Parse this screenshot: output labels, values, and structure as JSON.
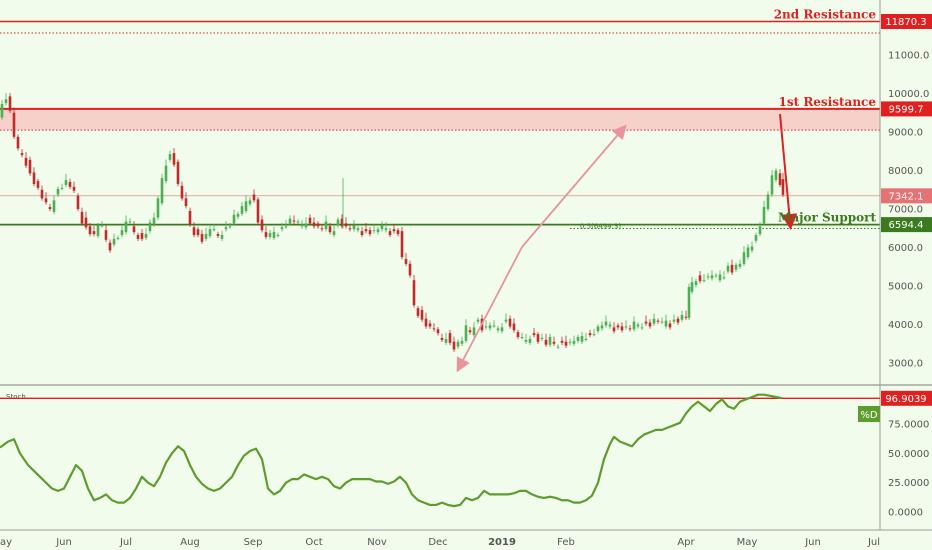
{
  "chart_data": {
    "type": "candlestick",
    "price_axis": {
      "ticks": [
        "11000.0",
        "10000.0",
        "9000.0",
        "8000.0",
        "7000.0",
        "6000.0",
        "5000.0",
        "4000.0",
        "3000.0"
      ],
      "tick_values": [
        11000,
        10000,
        9000,
        8000,
        7000,
        6000,
        5000,
        4000,
        3000
      ]
    },
    "stoch_axis": {
      "ticks": [
        "75.0000",
        "50.0000",
        "25.0000",
        "0.0000"
      ],
      "tick_values": [
        75,
        50,
        25,
        0
      ],
      "label": "Stoch",
      "legend": "%D"
    },
    "time_axis": {
      "labels": [
        "ay",
        "Jun",
        "Jul",
        "Aug",
        "Sep",
        "Oct",
        "Nov",
        "Dec",
        "2019",
        "Feb",
        "Apr",
        "May",
        "Jun",
        "Jul"
      ]
    },
    "levels": {
      "second_resistance": {
        "label": "2nd Resistance",
        "value": 11870.3,
        "value_text": "11870.3"
      },
      "first_resistance": {
        "label": "1st Resistance",
        "value": 9599.7,
        "value_text": "9599.7"
      },
      "current_price": {
        "value": 7342.1,
        "value_text": "7342.1"
      },
      "major_support": {
        "label": "Major Support",
        "value": 6594.4,
        "value_text": "6594.4"
      },
      "fib_label": "0.5(6494.3)",
      "stoch_level": {
        "value": 96.9039,
        "value_text": "96.9039"
      }
    },
    "colors": {
      "resistance": "#e02020",
      "support": "#3b7a1e",
      "zone_fill": "#f6c9c3",
      "candle_up": "#4caf50",
      "candle_down": "#c62828",
      "stoch_line": "#5e9c2e",
      "arrow_pink": "#e8949c",
      "arrow_red": "#e02020",
      "price_badge": "#e57373"
    },
    "candles_close_path": [
      [
        0,
        9300
      ],
      [
        4,
        9700
      ],
      [
        8,
        9900
      ],
      [
        12,
        9500
      ],
      [
        16,
        8900
      ],
      [
        20,
        8500
      ],
      [
        24,
        8400
      ],
      [
        28,
        8200
      ],
      [
        32,
        7900
      ],
      [
        36,
        7700
      ],
      [
        40,
        7500
      ],
      [
        44,
        7300
      ],
      [
        48,
        7100
      ],
      [
        52,
        7000
      ],
      [
        56,
        7300
      ],
      [
        60,
        7500
      ],
      [
        64,
        7600
      ],
      [
        68,
        7700
      ],
      [
        72,
        7600
      ],
      [
        76,
        7400
      ],
      [
        80,
        7000
      ],
      [
        84,
        6700
      ],
      [
        88,
        6500
      ],
      [
        92,
        6400
      ],
      [
        96,
        6300
      ],
      [
        100,
        6600
      ],
      [
        104,
        6500
      ],
      [
        108,
        6200
      ],
      [
        112,
        6000
      ],
      [
        116,
        6200
      ],
      [
        120,
        6300
      ],
      [
        124,
        6400
      ],
      [
        128,
        6700
      ],
      [
        132,
        6600
      ],
      [
        136,
        6400
      ],
      [
        140,
        6300
      ],
      [
        144,
        6200
      ],
      [
        148,
        6400
      ],
      [
        152,
        6600
      ],
      [
        156,
        6800
      ],
      [
        160,
        7200
      ],
      [
        164,
        7800
      ],
      [
        168,
        8200
      ],
      [
        172,
        8400
      ],
      [
        176,
        8200
      ],
      [
        180,
        7600
      ],
      [
        184,
        7300
      ],
      [
        188,
        7000
      ],
      [
        192,
        6600
      ],
      [
        196,
        6400
      ],
      [
        200,
        6300
      ],
      [
        204,
        6200
      ],
      [
        208,
        6300
      ],
      [
        212,
        6500
      ],
      [
        216,
        6400
      ],
      [
        220,
        6300
      ],
      [
        224,
        6400
      ],
      [
        228,
        6500
      ],
      [
        232,
        6600
      ],
      [
        236,
        6800
      ],
      [
        240,
        6900
      ],
      [
        244,
        7000
      ],
      [
        248,
        7200
      ],
      [
        252,
        7300
      ],
      [
        256,
        7200
      ],
      [
        260,
        6700
      ],
      [
        264,
        6400
      ],
      [
        268,
        6300
      ],
      [
        272,
        6300
      ],
      [
        276,
        6400
      ],
      [
        280,
        6400
      ],
      [
        284,
        6500
      ],
      [
        288,
        6600
      ],
      [
        292,
        6700
      ],
      [
        296,
        6700
      ],
      [
        300,
        6600
      ],
      [
        304,
        6600
      ],
      [
        308,
        6700
      ],
      [
        312,
        6600
      ],
      [
        316,
        6600
      ],
      [
        320,
        6500
      ],
      [
        324,
        6500
      ],
      [
        328,
        6600
      ],
      [
        332,
        6400
      ],
      [
        336,
        6500
      ],
      [
        340,
        6700
      ],
      [
        344,
        6600
      ],
      [
        348,
        6500
      ],
      [
        352,
        6500
      ],
      [
        356,
        6500
      ],
      [
        360,
        6500
      ],
      [
        364,
        6400
      ],
      [
        368,
        6400
      ],
      [
        372,
        6400
      ],
      [
        376,
        6400
      ],
      [
        380,
        6500
      ],
      [
        384,
        6500
      ],
      [
        388,
        6500
      ],
      [
        392,
        6400
      ],
      [
        396,
        6400
      ],
      [
        400,
        6400
      ],
      [
        404,
        5700
      ],
      [
        408,
        5600
      ],
      [
        412,
        5200
      ],
      [
        416,
        4500
      ],
      [
        420,
        4300
      ],
      [
        424,
        4100
      ],
      [
        428,
        4000
      ],
      [
        432,
        3900
      ],
      [
        436,
        3900
      ],
      [
        440,
        3700
      ],
      [
        444,
        3600
      ],
      [
        448,
        3700
      ],
      [
        452,
        3500
      ],
      [
        456,
        3400
      ],
      [
        460,
        3500
      ],
      [
        464,
        3600
      ],
      [
        468,
        3900
      ],
      [
        472,
        3800
      ],
      [
        476,
        4000
      ],
      [
        480,
        4100
      ],
      [
        484,
        3900
      ],
      [
        488,
        3900
      ],
      [
        492,
        4000
      ],
      [
        496,
        3900
      ],
      [
        500,
        3900
      ],
      [
        504,
        4000
      ],
      [
        508,
        4100
      ],
      [
        512,
        4000
      ],
      [
        516,
        3800
      ],
      [
        520,
        3700
      ],
      [
        524,
        3600
      ],
      [
        528,
        3600
      ],
      [
        532,
        3700
      ],
      [
        536,
        3700
      ],
      [
        540,
        3600
      ],
      [
        544,
        3600
      ],
      [
        548,
        3500
      ],
      [
        552,
        3600
      ],
      [
        556,
        3500
      ],
      [
        560,
        3500
      ],
      [
        564,
        3500
      ],
      [
        568,
        3500
      ],
      [
        572,
        3500
      ],
      [
        576,
        3600
      ],
      [
        580,
        3600
      ],
      [
        584,
        3700
      ],
      [
        588,
        3700
      ],
      [
        592,
        3700
      ],
      [
        596,
        3800
      ],
      [
        600,
        3900
      ],
      [
        604,
        4000
      ],
      [
        608,
        4000
      ],
      [
        612,
        4000
      ],
      [
        616,
        3900
      ],
      [
        620,
        3900
      ],
      [
        624,
        3900
      ],
      [
        628,
        3900
      ],
      [
        632,
        3900
      ],
      [
        636,
        4000
      ],
      [
        640,
        4000
      ],
      [
        644,
        4000
      ],
      [
        648,
        4000
      ],
      [
        652,
        4000
      ],
      [
        656,
        4100
      ],
      [
        660,
        4100
      ],
      [
        664,
        4000
      ],
      [
        668,
        4100
      ],
      [
        672,
        4000
      ],
      [
        676,
        4100
      ],
      [
        680,
        4100
      ],
      [
        684,
        4200
      ],
      [
        688,
        4200
      ],
      [
        690,
        4900
      ],
      [
        694,
        5100
      ],
      [
        698,
        5200
      ],
      [
        702,
        5100
      ],
      [
        706,
        5200
      ],
      [
        710,
        5200
      ],
      [
        714,
        5300
      ],
      [
        718,
        5200
      ],
      [
        722,
        5300
      ],
      [
        726,
        5300
      ],
      [
        730,
        5500
      ],
      [
        734,
        5400
      ],
      [
        738,
        5500
      ],
      [
        742,
        5600
      ],
      [
        746,
        5800
      ],
      [
        750,
        6000
      ],
      [
        754,
        6100
      ],
      [
        758,
        6300
      ],
      [
        762,
        6600
      ],
      [
        766,
        7000
      ],
      [
        770,
        7400
      ],
      [
        774,
        7800
      ],
      [
        778,
        8000
      ],
      [
        782,
        7700
      ],
      [
        784,
        7342
      ]
    ],
    "stoch_path": [
      [
        0,
        55
      ],
      [
        8,
        60
      ],
      [
        14,
        62
      ],
      [
        20,
        50
      ],
      [
        28,
        40
      ],
      [
        34,
        35
      ],
      [
        40,
        30
      ],
      [
        46,
        25
      ],
      [
        52,
        20
      ],
      [
        58,
        18
      ],
      [
        64,
        20
      ],
      [
        70,
        30
      ],
      [
        76,
        40
      ],
      [
        82,
        35
      ],
      [
        88,
        20
      ],
      [
        94,
        10
      ],
      [
        100,
        12
      ],
      [
        106,
        15
      ],
      [
        112,
        10
      ],
      [
        118,
        8
      ],
      [
        124,
        8
      ],
      [
        130,
        12
      ],
      [
        136,
        20
      ],
      [
        142,
        30
      ],
      [
        148,
        25
      ],
      [
        154,
        22
      ],
      [
        160,
        30
      ],
      [
        166,
        42
      ],
      [
        172,
        50
      ],
      [
        178,
        56
      ],
      [
        184,
        52
      ],
      [
        190,
        40
      ],
      [
        196,
        30
      ],
      [
        202,
        24
      ],
      [
        208,
        20
      ],
      [
        214,
        18
      ],
      [
        220,
        20
      ],
      [
        226,
        25
      ],
      [
        232,
        30
      ],
      [
        238,
        40
      ],
      [
        244,
        48
      ],
      [
        250,
        52
      ],
      [
        256,
        54
      ],
      [
        262,
        45
      ],
      [
        268,
        20
      ],
      [
        274,
        15
      ],
      [
        280,
        18
      ],
      [
        286,
        25
      ],
      [
        292,
        28
      ],
      [
        298,
        28
      ],
      [
        304,
        32
      ],
      [
        310,
        30
      ],
      [
        316,
        28
      ],
      [
        322,
        30
      ],
      [
        328,
        28
      ],
      [
        334,
        22
      ],
      [
        340,
        20
      ],
      [
        346,
        25
      ],
      [
        352,
        28
      ],
      [
        358,
        28
      ],
      [
        364,
        28
      ],
      [
        370,
        28
      ],
      [
        376,
        26
      ],
      [
        382,
        26
      ],
      [
        388,
        24
      ],
      [
        394,
        26
      ],
      [
        400,
        30
      ],
      [
        406,
        25
      ],
      [
        412,
        15
      ],
      [
        418,
        10
      ],
      [
        424,
        8
      ],
      [
        430,
        6
      ],
      [
        436,
        6
      ],
      [
        442,
        8
      ],
      [
        448,
        6
      ],
      [
        454,
        5
      ],
      [
        460,
        6
      ],
      [
        466,
        12
      ],
      [
        472,
        10
      ],
      [
        478,
        12
      ],
      [
        484,
        18
      ],
      [
        490,
        15
      ],
      [
        496,
        15
      ],
      [
        502,
        15
      ],
      [
        508,
        15
      ],
      [
        514,
        16
      ],
      [
        520,
        18
      ],
      [
        526,
        18
      ],
      [
        532,
        15
      ],
      [
        538,
        13
      ],
      [
        544,
        12
      ],
      [
        550,
        13
      ],
      [
        556,
        12
      ],
      [
        562,
        10
      ],
      [
        568,
        10
      ],
      [
        574,
        8
      ],
      [
        580,
        8
      ],
      [
        586,
        10
      ],
      [
        592,
        14
      ],
      [
        598,
        25
      ],
      [
        604,
        45
      ],
      [
        610,
        58
      ],
      [
        614,
        64
      ],
      [
        620,
        60
      ],
      [
        626,
        58
      ],
      [
        632,
        56
      ],
      [
        638,
        62
      ],
      [
        644,
        66
      ],
      [
        650,
        68
      ],
      [
        656,
        70
      ],
      [
        662,
        70
      ],
      [
        668,
        72
      ],
      [
        674,
        74
      ],
      [
        680,
        76
      ],
      [
        686,
        84
      ],
      [
        692,
        90
      ],
      [
        698,
        94
      ],
      [
        704,
        90
      ],
      [
        710,
        86
      ],
      [
        716,
        92
      ],
      [
        722,
        96
      ],
      [
        728,
        90
      ],
      [
        734,
        88
      ],
      [
        740,
        94
      ],
      [
        746,
        96
      ],
      [
        752,
        98
      ],
      [
        758,
        100
      ],
      [
        764,
        100
      ],
      [
        770,
        99
      ],
      [
        776,
        98
      ],
      [
        782,
        97
      ]
    ]
  }
}
